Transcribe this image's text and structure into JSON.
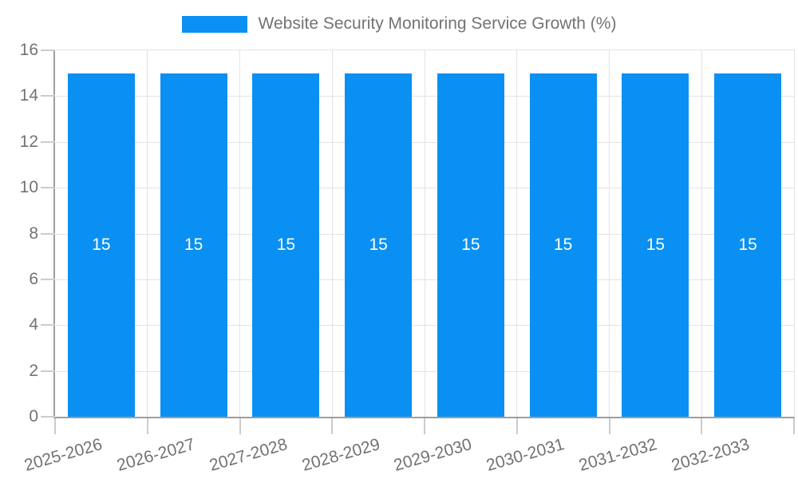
{
  "legend": {
    "label": "Website Security Monitoring Service Growth (%)",
    "swatch": "legend-color-swatch"
  },
  "colors": {
    "bar": "#0a90f2",
    "grid": "#e3e3e3",
    "axis": "#9e9e9e",
    "tick": "#cccccc",
    "label_text": "#737373",
    "bar_label": "#ffffff",
    "background": "#ffffff"
  },
  "chart_data": {
    "type": "bar",
    "title": "Website Security Monitoring Service Growth (%)",
    "categories": [
      "2025-2026",
      "2026-2027",
      "2027-2028",
      "2028-2029",
      "2029-2030",
      "2030-2031",
      "2031-2032",
      "2032-2033"
    ],
    "values": [
      15,
      15,
      15,
      15,
      15,
      15,
      15,
      15
    ],
    "bar_value_labels": [
      "15",
      "15",
      "15",
      "15",
      "15",
      "15",
      "15",
      "15"
    ],
    "xlabel": "",
    "ylabel": "",
    "ylim": [
      0,
      16
    ],
    "yticks": [
      0,
      2,
      4,
      6,
      8,
      10,
      12,
      14,
      16
    ],
    "grid": true,
    "legend_position": "top-center",
    "x_tick_rotation_deg": -16,
    "bar_labels_inside": true
  }
}
